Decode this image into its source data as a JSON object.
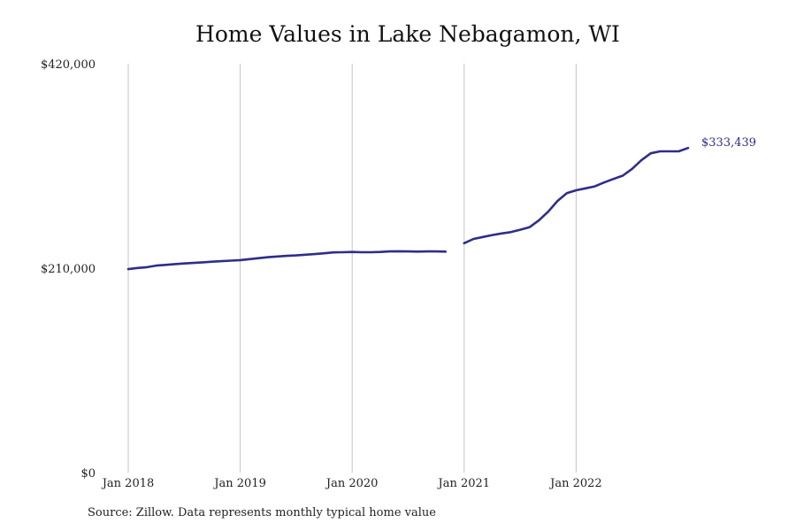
{
  "chart_data": {
    "type": "line",
    "title": "Home Values in Lake Nebagamon, WI",
    "xlabel": "",
    "ylabel": "",
    "source": "Source: Zillow. Data represents monthly typical home value",
    "ylim": [
      0,
      420000
    ],
    "y_ticks": [
      {
        "value": 0,
        "label": "$0"
      },
      {
        "value": 210000,
        "label": "$210,000"
      },
      {
        "value": 420000,
        "label": "$420,000"
      }
    ],
    "x_ticks": [
      {
        "value": "2018-01",
        "label": "Jan 2018"
      },
      {
        "value": "2019-01",
        "label": "Jan 2019"
      },
      {
        "value": "2020-01",
        "label": "Jan 2020"
      },
      {
        "value": "2021-01",
        "label": "Jan 2021"
      },
      {
        "value": "2022-01",
        "label": "Jan 2022"
      }
    ],
    "grid": "vertical",
    "series_color": "#2e2e8a",
    "end_label": "$333,439",
    "series": [
      {
        "name": "",
        "points": [
          {
            "x": "2018-01",
            "y": 209000
          },
          {
            "x": "2018-02",
            "y": 210200
          },
          {
            "x": "2018-03",
            "y": 211000
          },
          {
            "x": "2018-04",
            "y": 212600
          },
          {
            "x": "2018-05",
            "y": 213400
          },
          {
            "x": "2018-06",
            "y": 214200
          },
          {
            "x": "2018-07",
            "y": 214800
          },
          {
            "x": "2018-08",
            "y": 215400
          },
          {
            "x": "2018-09",
            "y": 216000
          },
          {
            "x": "2018-10",
            "y": 216600
          },
          {
            "x": "2018-11",
            "y": 217200
          },
          {
            "x": "2018-12",
            "y": 217700
          },
          {
            "x": "2019-01",
            "y": 218300
          },
          {
            "x": "2019-02",
            "y": 219300
          },
          {
            "x": "2019-03",
            "y": 220300
          },
          {
            "x": "2019-04",
            "y": 221300
          },
          {
            "x": "2019-05",
            "y": 222000
          },
          {
            "x": "2019-06",
            "y": 222600
          },
          {
            "x": "2019-07",
            "y": 223100
          },
          {
            "x": "2019-08",
            "y": 223800
          },
          {
            "x": "2019-09",
            "y": 224500
          },
          {
            "x": "2019-10",
            "y": 225300
          },
          {
            "x": "2019-11",
            "y": 226200
          },
          {
            "x": "2019-12",
            "y": 226400
          },
          {
            "x": "2020-01",
            "y": 226600
          },
          {
            "x": "2020-02",
            "y": 226400
          },
          {
            "x": "2020-03",
            "y": 226400
          },
          {
            "x": "2020-04",
            "y": 226600
          },
          {
            "x": "2020-05",
            "y": 227200
          },
          {
            "x": "2020-06",
            "y": 227400
          },
          {
            "x": "2020-07",
            "y": 227200
          },
          {
            "x": "2020-08",
            "y": 227000
          },
          {
            "x": "2020-09",
            "y": 227200
          },
          {
            "x": "2020-10",
            "y": 227200
          },
          {
            "x": "2020-11",
            "y": 227000
          },
          {
            "x": "2020-12",
            "y": null
          },
          {
            "x": "2021-01",
            "y": 235600
          },
          {
            "x": "2021-02",
            "y": 240000
          },
          {
            "x": "2021-03",
            "y": 242000
          },
          {
            "x": "2021-04",
            "y": 244000
          },
          {
            "x": "2021-05",
            "y": 245600
          },
          {
            "x": "2021-06",
            "y": 247000
          },
          {
            "x": "2021-07",
            "y": 249500
          },
          {
            "x": "2021-08",
            "y": 252000
          },
          {
            "x": "2021-09",
            "y": 259000
          },
          {
            "x": "2021-10",
            "y": 268000
          },
          {
            "x": "2021-11",
            "y": 279000
          },
          {
            "x": "2021-12",
            "y": 287000
          },
          {
            "x": "2022-01",
            "y": 290000
          },
          {
            "x": "2022-02",
            "y": 292000
          },
          {
            "x": "2022-03",
            "y": 294000
          },
          {
            "x": "2022-04",
            "y": 298000
          },
          {
            "x": "2022-05",
            "y": 301600
          },
          {
            "x": "2022-06",
            "y": 305000
          },
          {
            "x": "2022-07",
            "y": 312000
          },
          {
            "x": "2022-08",
            "y": 321000
          },
          {
            "x": "2022-09",
            "y": 328000
          },
          {
            "x": "2022-10",
            "y": 330000
          },
          {
            "x": "2022-11",
            "y": 330000
          },
          {
            "x": "2022-12",
            "y": 330000
          },
          {
            "x": "2023-01",
            "y": 333439
          }
        ]
      }
    ]
  }
}
